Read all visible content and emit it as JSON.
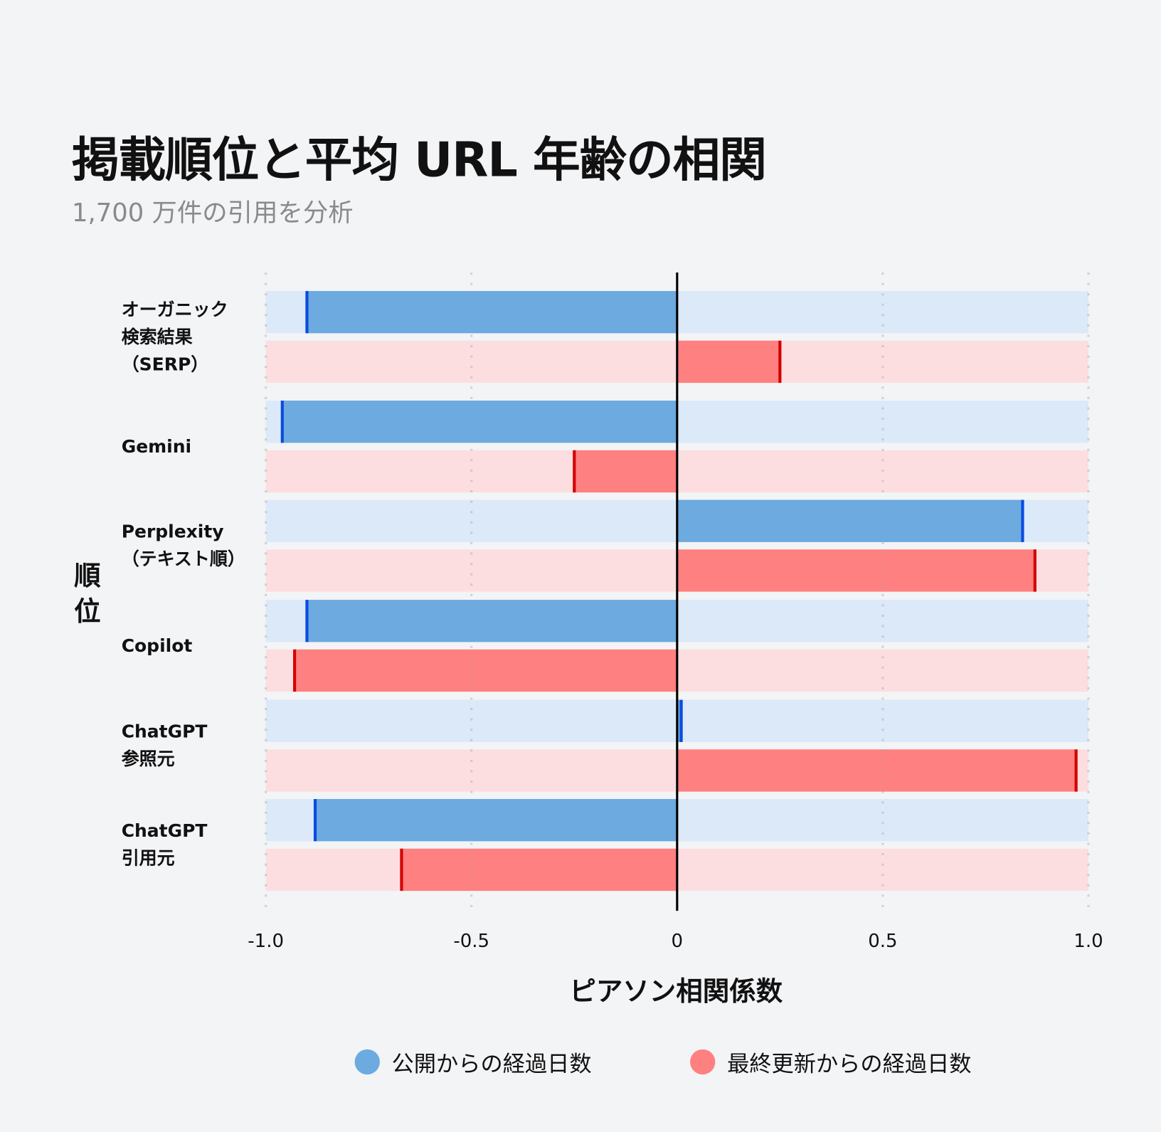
{
  "title": "掲載順位と平均 URL 年齢の相関",
  "subtitle": "1,700 万件の引用を分析",
  "colors": {
    "background": "#f3f4f6",
    "published": "#6caae0",
    "published_track": "#dbe9f8",
    "published_marker": "#0a4be0",
    "updated": "#ff8080",
    "updated_track": "#fddee0",
    "updated_marker": "#d40000"
  },
  "chart_data": {
    "type": "bar",
    "orientation": "horizontal",
    "ylabel": "順位",
    "xlabel": "ピアソン相関係数",
    "xlim": [
      -1.0,
      1.0
    ],
    "xticks": [
      "-1.0",
      "-0.5",
      "0",
      "0.5",
      "1.0"
    ],
    "grid": "vertical dotted",
    "legend_position": "bottom",
    "categories": [
      "オーガニック\n検索結果\n（SERP）",
      "Gemini",
      "Perplexity\n（テキスト順）",
      "Copilot",
      "ChatGPT\n参照元",
      "ChatGPT\n引用元"
    ],
    "series": [
      {
        "name": "公開からの経過日数",
        "values": [
          -0.9,
          -0.96,
          0.84,
          -0.9,
          0.01,
          -0.88
        ]
      },
      {
        "name": "最終更新からの経過日数",
        "values": [
          0.25,
          -0.25,
          0.87,
          -0.93,
          0.97,
          -0.67
        ]
      }
    ]
  }
}
